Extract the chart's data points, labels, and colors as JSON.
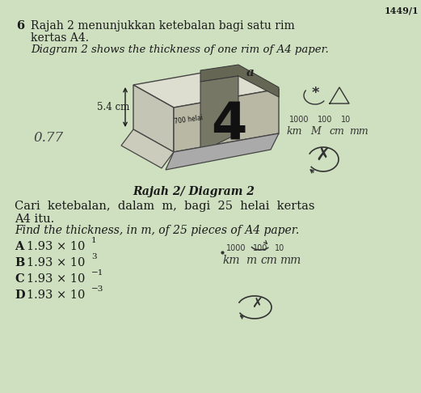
{
  "bg_color": "#cfe0c0",
  "title_number": "1449/1",
  "question_number": "6",
  "question_malay": "Rajah 2 menunjukkan ketebalan bagi satu rim",
  "question_malay2_cont": "kertas A4.",
  "question_english": "Diagram 2 shows the thickness of one rim of A4 paper.",
  "diagram_label": "Rajah 2/ Diagram 2",
  "thickness_label": "5.4 cm",
  "handwritten_left": "0.77",
  "cari_malay": "Cari  ketebalan,  dalam  m,  bagi  25  helai  kertas",
  "cari_malay2": "A4 itu.",
  "cari_english": "Find the thickness, in m, of 25 pieces of A4 paper.",
  "options": [
    {
      "letter": "A",
      "text": "1.93 × 10",
      "sup": "1"
    },
    {
      "letter": "B",
      "text": "1.93 × 10",
      "sup": "3"
    },
    {
      "letter": "C",
      "text": "1.93 × 10",
      "sup": "−1"
    },
    {
      "letter": "D",
      "text": "1.93 × 10",
      "sup": "−3"
    }
  ],
  "text_color": "#1a1a1a"
}
